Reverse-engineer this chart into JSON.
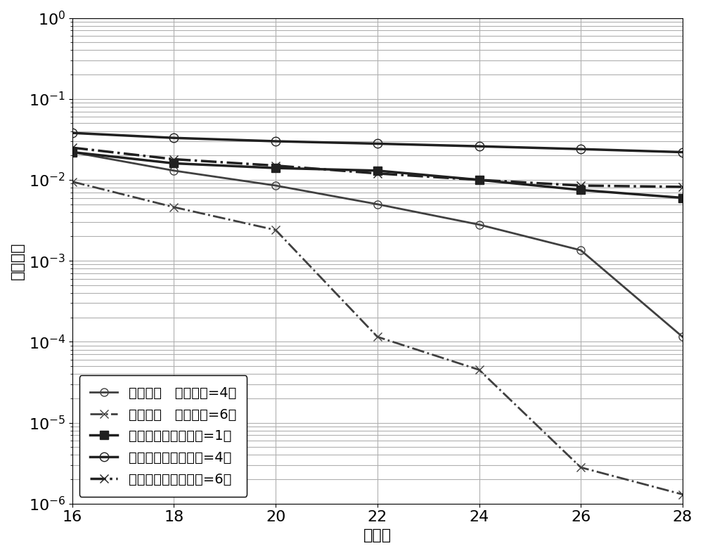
{
  "x": [
    16,
    18,
    20,
    22,
    24,
    26,
    28
  ],
  "series": {
    "design_4": {
      "label": "设计方案（中继数=4）",
      "values": [
        0.022,
        0.013,
        0.0085,
        0.005,
        0.0028,
        0.00135,
        0.000115
      ],
      "color": "#404040",
      "linestyle": "-",
      "marker": "o",
      "linewidth": 2.0,
      "markersize": 8,
      "fillstyle": "none"
    },
    "design_6": {
      "label": "设计方案（中继数=6）",
      "values": [
        0.0095,
        0.0046,
        0.0024,
        0.000115,
        4.5e-05,
        2.8e-06,
        1.3e-06
      ],
      "color": "#404040",
      "linestyle": "-.",
      "marker": "x",
      "linewidth": 2.0,
      "markersize": 9,
      "fillstyle": "full"
    },
    "compare1_1": {
      "label": "对比方案一（中继数=1）",
      "values": [
        0.022,
        0.016,
        0.014,
        0.013,
        0.01,
        0.0075,
        0.006
      ],
      "color": "#202020",
      "linestyle": "-",
      "marker": "s",
      "linewidth": 2.5,
      "markersize": 8,
      "fillstyle": "full"
    },
    "compare2_4": {
      "label": "对比方案二（中继数=4）",
      "values": [
        0.038,
        0.033,
        0.03,
        0.028,
        0.026,
        0.024,
        0.022
      ],
      "color": "#202020",
      "linestyle": "-",
      "marker": "o",
      "linewidth": 2.5,
      "markersize": 9,
      "fillstyle": "none"
    },
    "compare2_6": {
      "label": "对比方案二（中继数=6）",
      "values": [
        0.025,
        0.018,
        0.015,
        0.012,
        0.01,
        0.0085,
        0.0082
      ],
      "color": "#202020",
      "linestyle": "-.",
      "marker": "x",
      "linewidth": 2.5,
      "markersize": 9,
      "fillstyle": "full"
    }
  },
  "legend_labels": [
    "设计方案（中继数=4）",
    "设计方案（中继数=6）",
    "对比方案一（中继数=1）",
    "对比方案二（中继数=4）",
    "对比方案二（中继数=6）"
  ],
  "xlabel": "总包数",
  "ylabel": "破译概率",
  "ylim": [
    1e-06,
    1.0
  ],
  "xlim": [
    16,
    28
  ],
  "xticks": [
    16,
    18,
    20,
    22,
    24,
    26,
    28
  ],
  "grid_color": "#b0b0b0",
  "background_color": "#ffffff",
  "font_size": 16,
  "legend_fontsize": 14
}
